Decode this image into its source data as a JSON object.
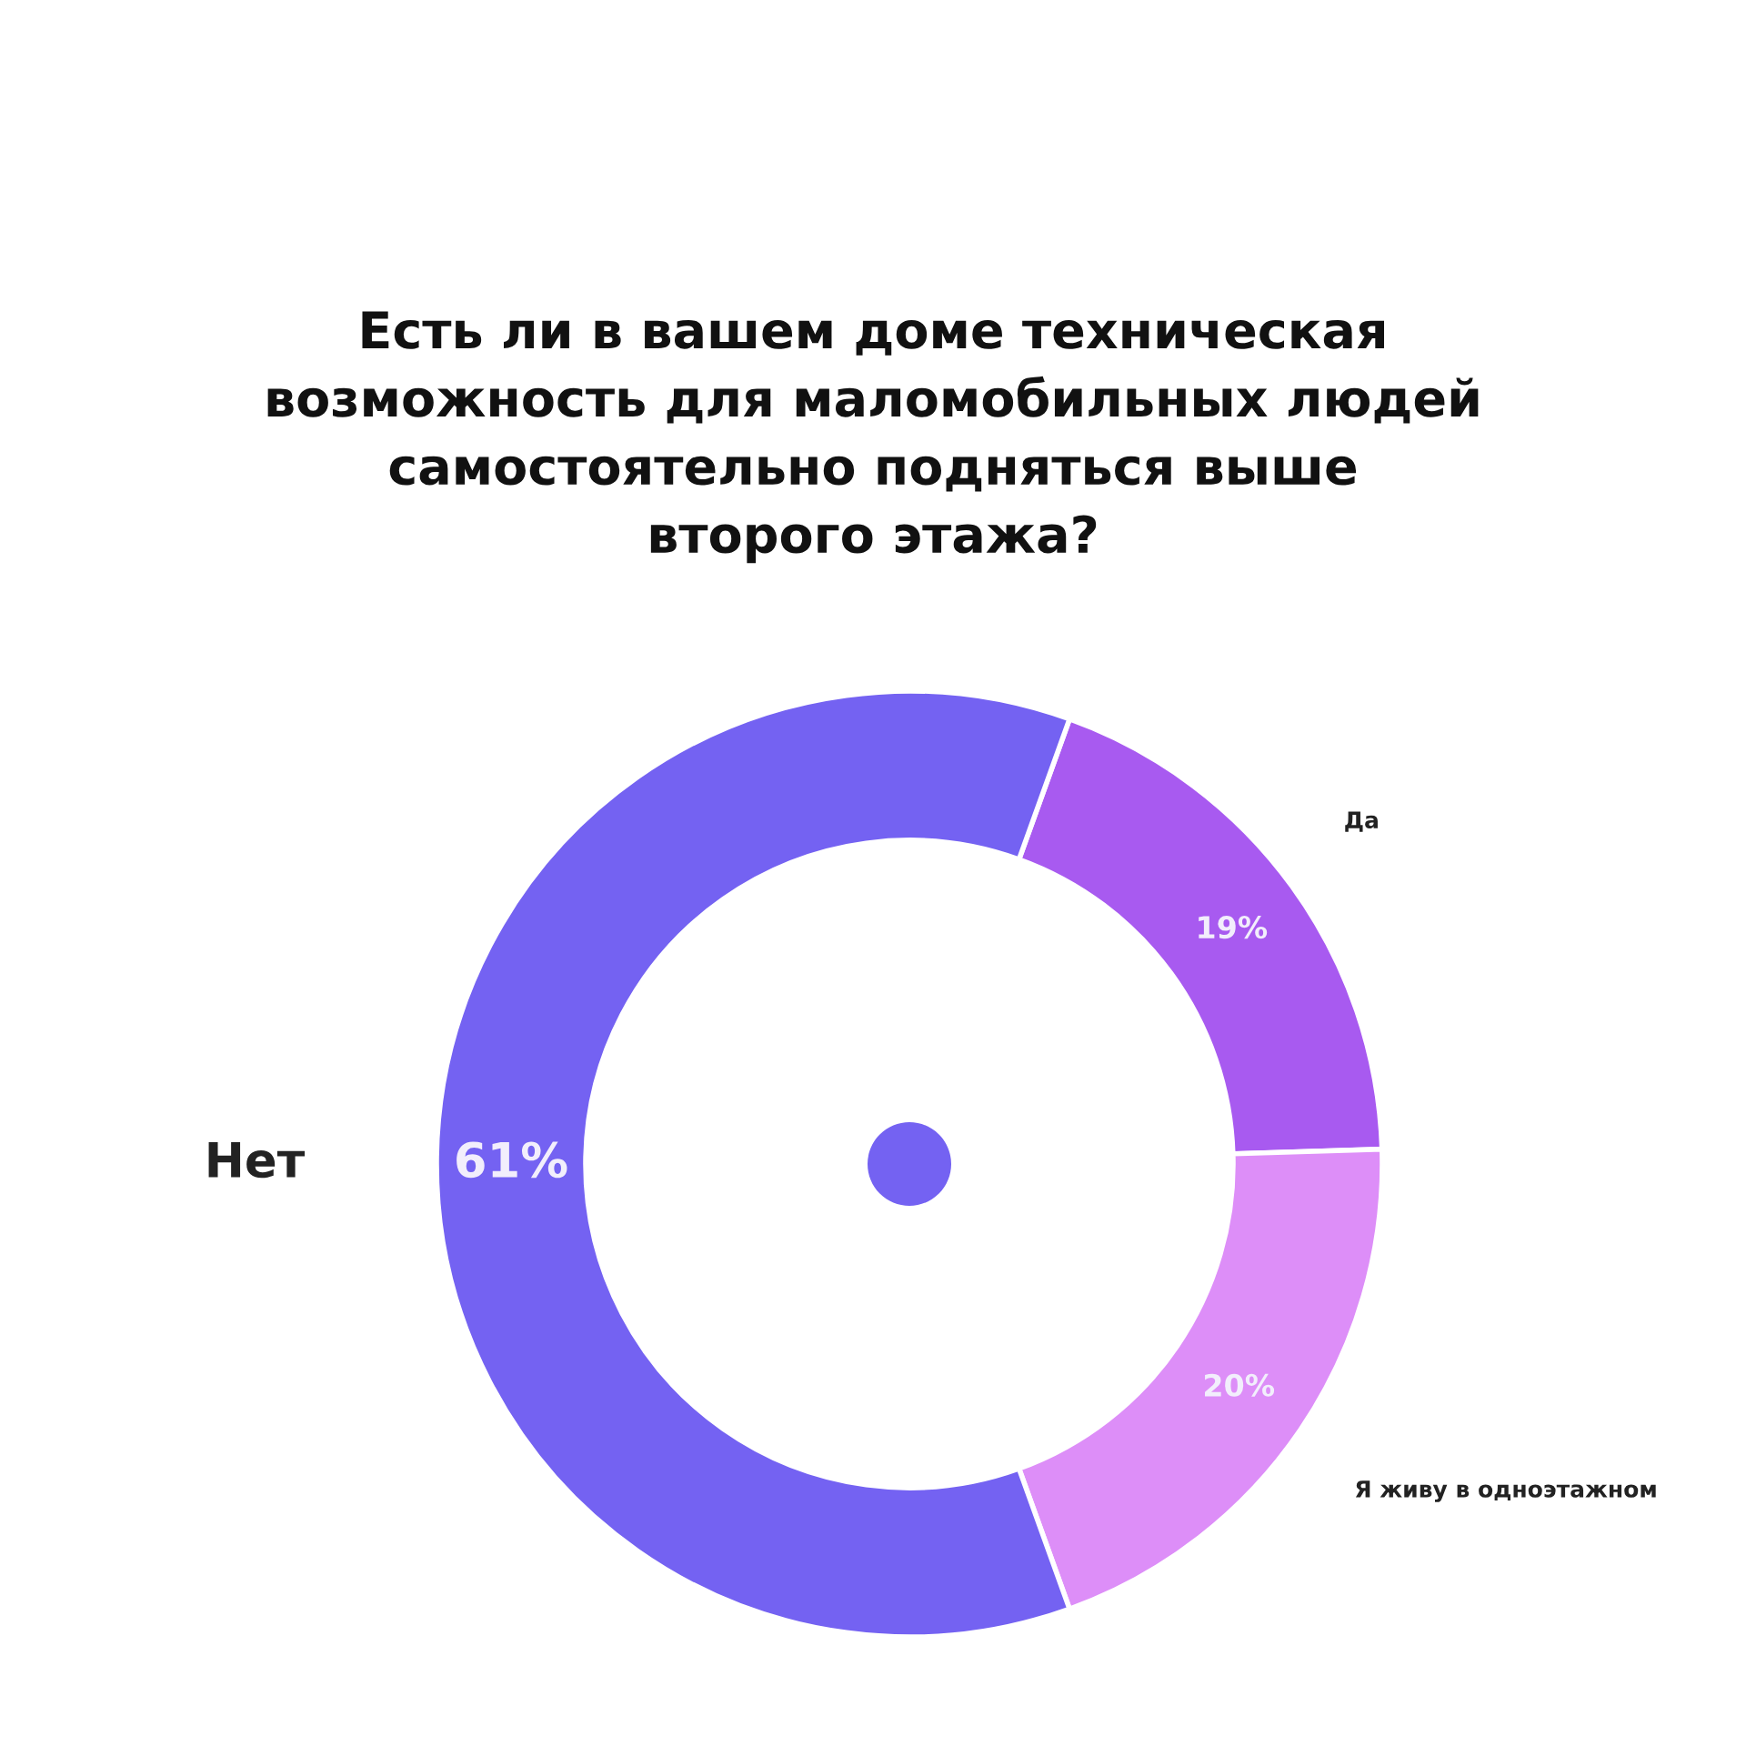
{
  "chart_data": {
    "type": "donut",
    "title": "Есть ли в вашем доме техническая\nвозможность для маломобильных людей\nсамостоятельно подняться выше\nвторого этажа?",
    "categories": [
      "Да",
      "Я живу в одноэтажном",
      "Нет"
    ],
    "values": [
      19,
      20,
      61
    ],
    "value_labels": [
      "19%",
      "20%",
      "61%"
    ],
    "colors": [
      "#a85af0",
      "#dd8ef8",
      "#7462f2"
    ],
    "legend": false
  }
}
